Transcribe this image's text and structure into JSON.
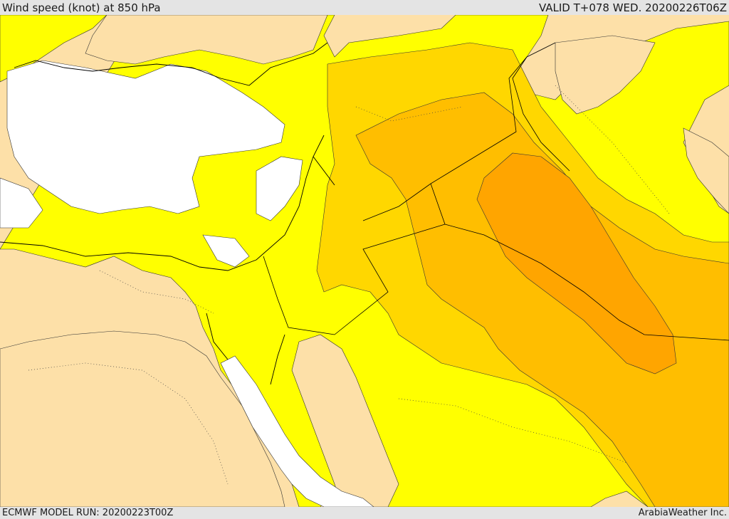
{
  "header": {
    "title": "Wind speed (knot) at 850 hPa",
    "valid_time": "VALID T+078 WED. 20200226T06Z"
  },
  "footer": {
    "model_run": "ECMWF MODEL RUN: 20200223T00Z",
    "credit": "ArabiaWeather Inc."
  },
  "map": {
    "fill_colors": {
      "water_calm": "#ffffff",
      "land_calm": "#fde0a8",
      "band_1": "#ffff00",
      "band_2": "#ffd700",
      "band_3": "#ffbe00",
      "band_4": "#ffa500",
      "border": "#000000"
    }
  }
}
